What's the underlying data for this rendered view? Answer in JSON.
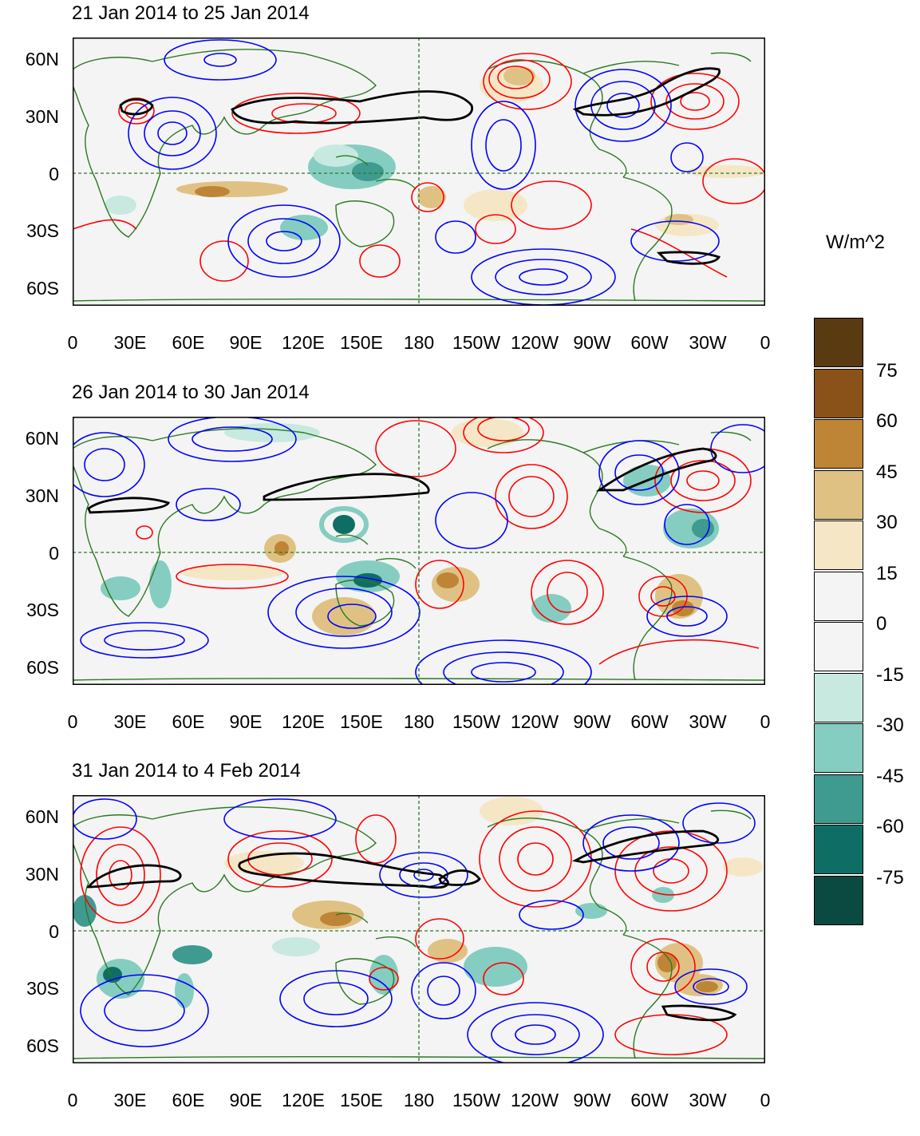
{
  "panels": [
    {
      "title": "21 Jan 2014 to 25 Jan 2014"
    },
    {
      "title": "26 Jan 2014 to 30 Jan 2014"
    },
    {
      "title": "31 Jan 2014 to 4 Feb 2014"
    }
  ],
  "lat_labels": [
    "60N",
    "30N",
    "0",
    "30S",
    "60S"
  ],
  "lon_labels": [
    "0",
    "30E",
    "60E",
    "90E",
    "120E",
    "150E",
    "180",
    "150W",
    "120W",
    "90W",
    "60W",
    "30W",
    "0"
  ],
  "colorbar": {
    "units": "W/m^2",
    "levels": [
      "75",
      "60",
      "45",
      "30",
      "15",
      "0",
      "-15",
      "-30",
      "-45",
      "-60",
      "-75"
    ],
    "colors": [
      "#5a3a10",
      "#8a5218",
      "#bf8536",
      "#dfc283",
      "#f5e6c6",
      "#f4f4f4",
      "#f4f4f4",
      "#c7e9df",
      "#85cdc0",
      "#3f9a90",
      "#0e6e66",
      "#0a4a40"
    ]
  },
  "contour_colors": {
    "positive": "#ff0000",
    "negative": "#0000ff",
    "jet": "#000000",
    "coast": "#2a7a20",
    "ref": "#2a7a20"
  }
}
